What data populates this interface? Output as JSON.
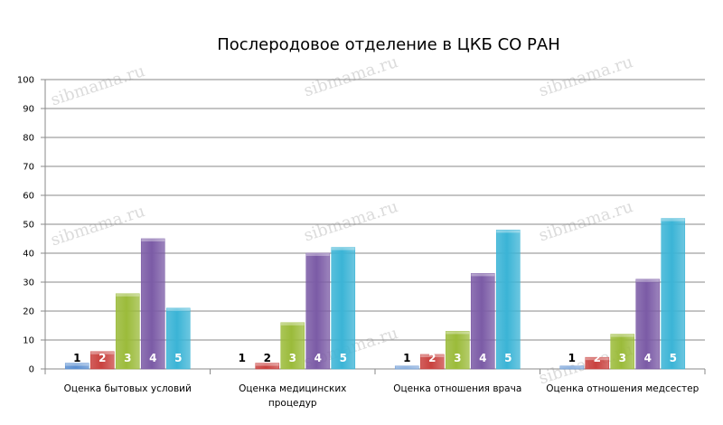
{
  "chart_data": {
    "type": "bar",
    "title": "Послеродовое отделение в ЦКБ СО РАН",
    "ylim": [
      0,
      100
    ],
    "yticks": [
      0,
      10,
      20,
      30,
      40,
      50,
      60,
      70,
      80,
      90,
      100
    ],
    "grid": true,
    "categories": [
      [
        "Оценка бытовых условий"
      ],
      [
        "Оценка медицинских",
        "процедур"
      ],
      [
        "Оценка отношения врача"
      ],
      [
        "Оценка отношения медсестер"
      ]
    ],
    "series": [
      {
        "name": "1",
        "color": "#5b8fd1",
        "values": [
          2,
          0,
          1,
          1
        ]
      },
      {
        "name": "2",
        "color": "#c9423f",
        "values": [
          6,
          2,
          5,
          4
        ]
      },
      {
        "name": "3",
        "color": "#9bbb3a",
        "values": [
          26,
          16,
          13,
          12
        ]
      },
      {
        "name": "4",
        "color": "#7b5ba6",
        "values": [
          45,
          40,
          33,
          31
        ]
      },
      {
        "name": "5",
        "color": "#3bb4d6",
        "values": [
          21,
          42,
          48,
          52
        ]
      }
    ],
    "watermark": "sibmama.ru"
  }
}
